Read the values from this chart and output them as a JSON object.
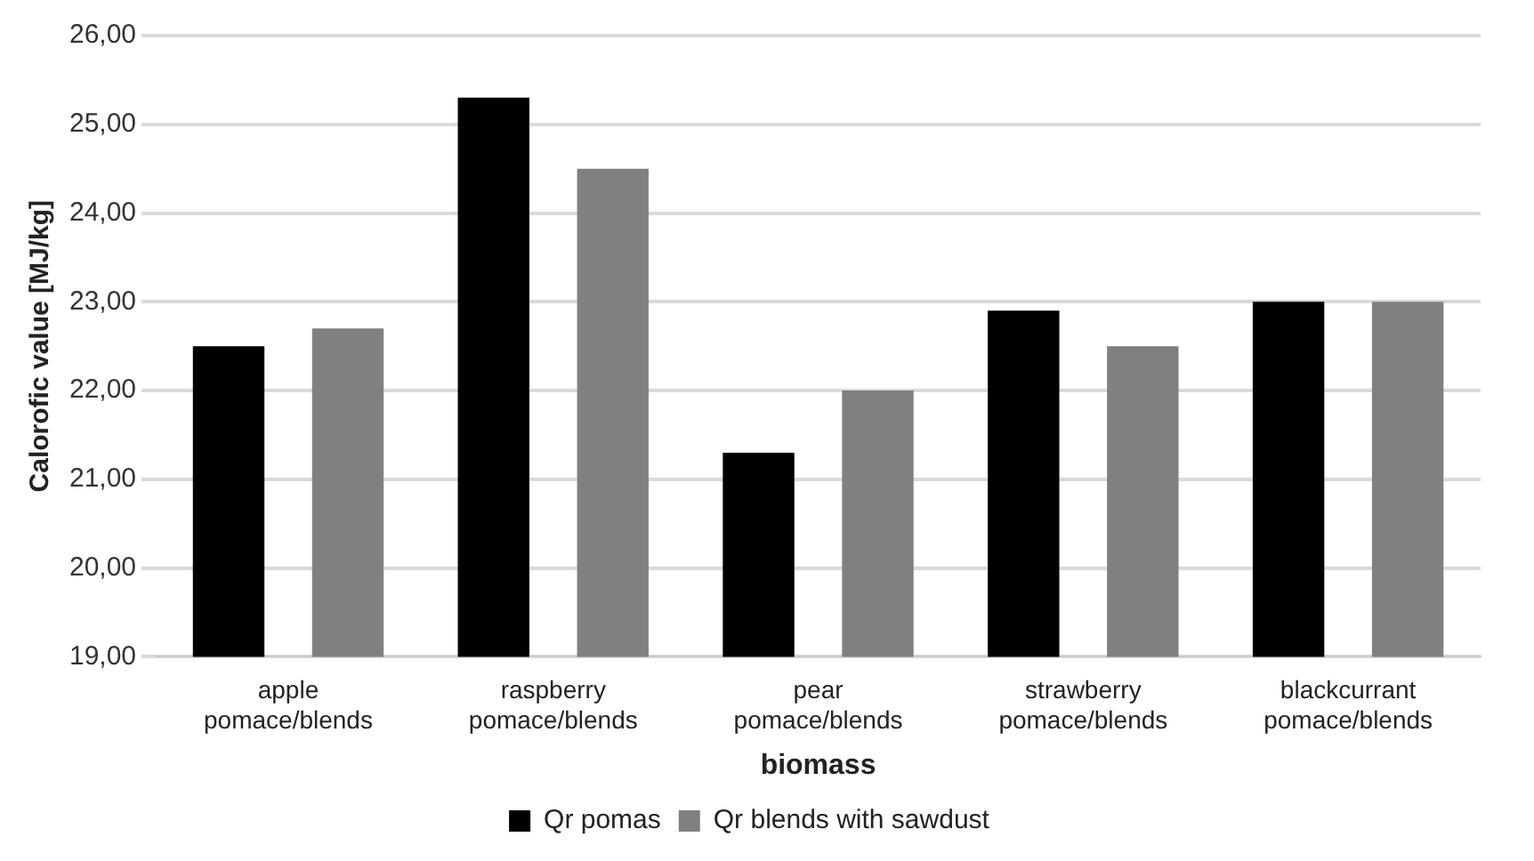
{
  "chart_data": {
    "type": "bar",
    "xlabel": "biomass",
    "ylabel": "Calorofic value [MJ/kg]",
    "categories": [
      "apple pomace/blends",
      "raspberry pomace/blends",
      "pear pomace/blends",
      "strawberry pomace/blends",
      "blackcurrant pomace/blends"
    ],
    "series": [
      {
        "name": "Qr pomas",
        "color": "#000000",
        "values": [
          22.5,
          25.3,
          21.3,
          22.9,
          23.0
        ]
      },
      {
        "name": "Qr blends with sawdust",
        "color": "#808080",
        "values": [
          22.7,
          24.5,
          22.0,
          22.5,
          23.0
        ]
      }
    ],
    "ylim": [
      19,
      26
    ],
    "yticks": [
      {
        "value": 19,
        "label": "19,00"
      },
      {
        "value": 20,
        "label": "20,00"
      },
      {
        "value": 21,
        "label": "21,00"
      },
      {
        "value": 22,
        "label": "22,00"
      },
      {
        "value": 23,
        "label": "23,00"
      },
      {
        "value": 24,
        "label": "24,00"
      },
      {
        "value": 25,
        "label": "25,00"
      },
      {
        "value": 26,
        "label": "26,00"
      }
    ],
    "grid": "y",
    "legend": "bottom"
  }
}
